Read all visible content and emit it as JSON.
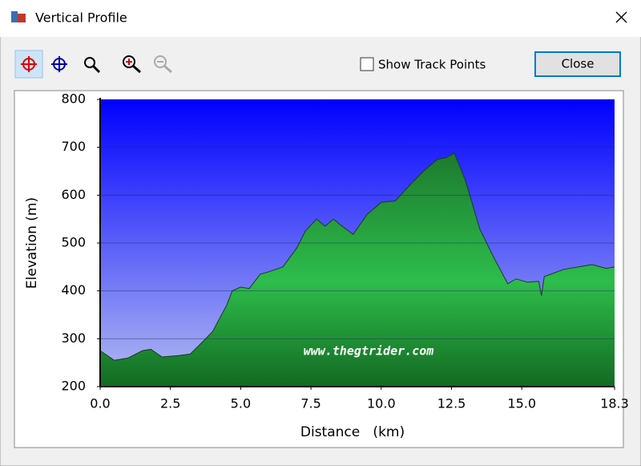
{
  "window": {
    "title": "Vertical Profile",
    "checkbox": "Show Track Points",
    "button": "Close"
  },
  "chart_data": {
    "type": "area",
    "xlabel": "Distance   (km)",
    "ylabel": "Elevation (m)",
    "annotation": "www.thegtrider.com",
    "x": [
      0,
      0.5,
      1.0,
      1.5,
      1.8,
      2.2,
      2.8,
      3.2,
      3.5,
      4.0,
      4.5,
      4.7,
      5.0,
      5.3,
      5.7,
      6.0,
      6.5,
      7.0,
      7.3,
      7.7,
      8.0,
      8.3,
      8.5,
      9.0,
      9.5,
      10.0,
      10.5,
      11.0,
      11.5,
      12.0,
      12.3,
      12.6,
      13.0,
      13.5,
      14.0,
      14.5,
      14.8,
      15.2,
      15.6,
      15.7,
      15.8,
      16.5,
      17.0,
      17.5,
      18.0,
      18.3
    ],
    "values": [
      275,
      255,
      260,
      275,
      278,
      262,
      265,
      268,
      285,
      315,
      370,
      400,
      408,
      405,
      435,
      440,
      450,
      490,
      525,
      550,
      535,
      550,
      540,
      518,
      560,
      585,
      588,
      620,
      650,
      675,
      678,
      688,
      630,
      530,
      470,
      415,
      425,
      418,
      420,
      390,
      430,
      445,
      450,
      455,
      447,
      450
    ],
    "color": "#25a03f",
    "xlim": [
      0,
      18.3
    ],
    "ylim": [
      200,
      800
    ],
    "xticks": [
      {
        "value": 0,
        "label": "0.0"
      },
      2.5,
      {
        "value": 5,
        "label": "5.0"
      },
      7.5,
      {
        "value": 10,
        "label": "10.0"
      },
      12.5,
      {
        "value": 15,
        "label": "15.0"
      },
      18.3
    ],
    "yticks": [
      200,
      300,
      400,
      500,
      600,
      700,
      800
    ],
    "grid": true
  }
}
